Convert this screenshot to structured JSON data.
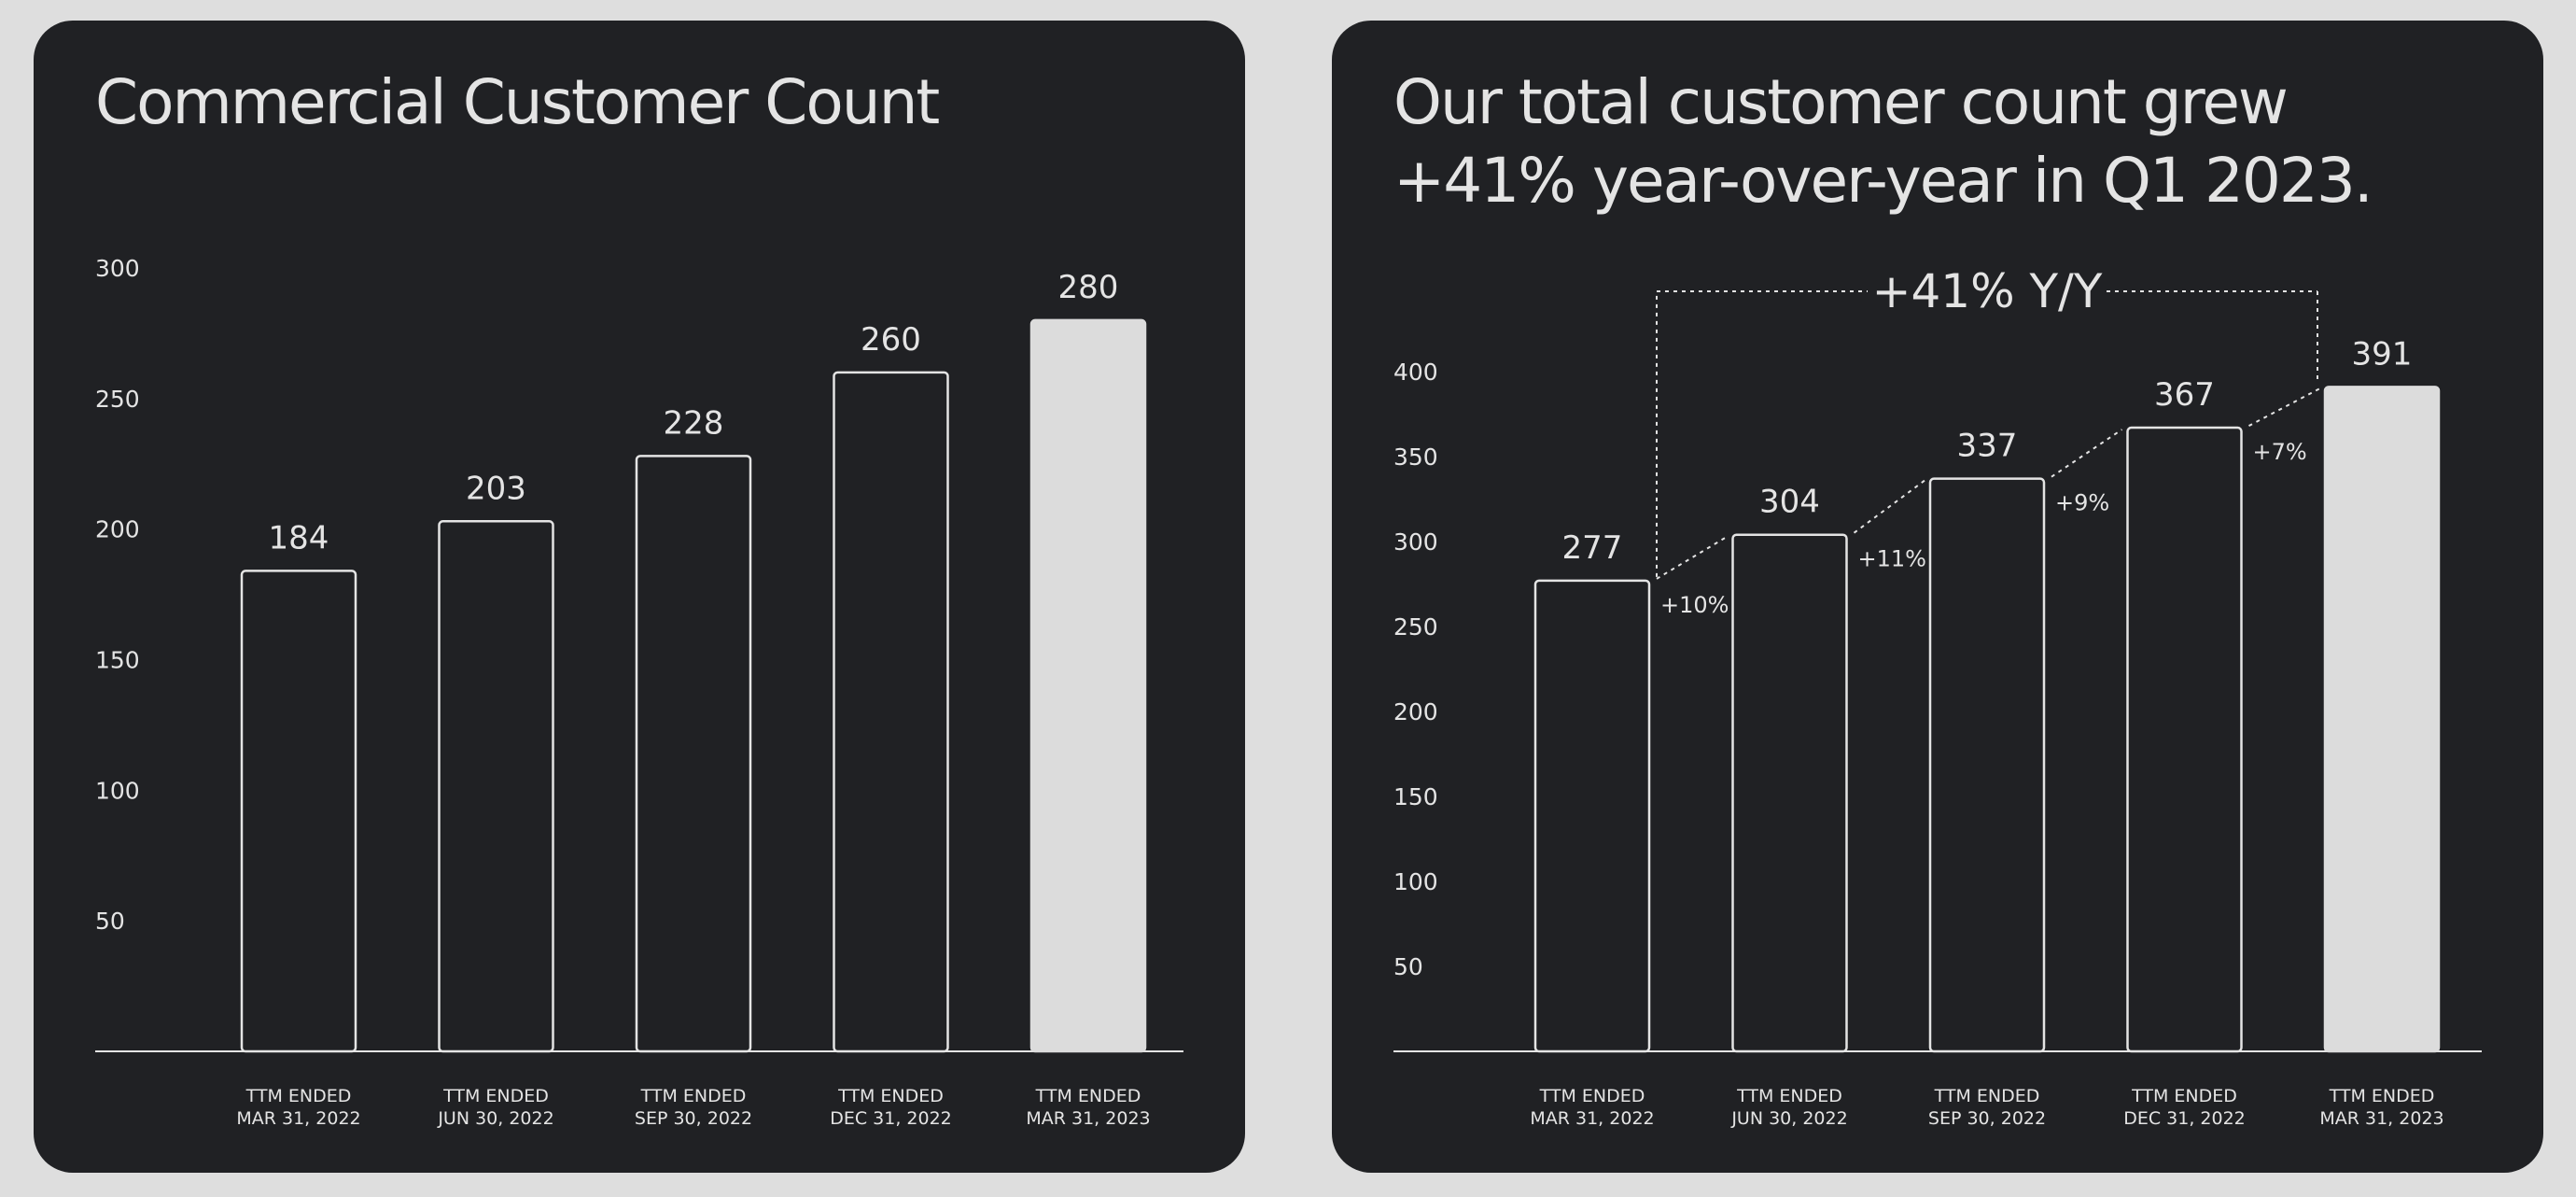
{
  "colors": {
    "page_bg": "#dedede",
    "panel_bg": "#202124",
    "text": "#e4e4e4",
    "highlight": "#dcdcdc"
  },
  "chart_data": [
    {
      "type": "bar",
      "title": "Commercial Customer Count",
      "categories": [
        [
          "TTM ENDED",
          "MAR 31, 2022"
        ],
        [
          "TTM ENDED",
          "JUN 30, 2022"
        ],
        [
          "TTM ENDED",
          "SEP 30, 2022"
        ],
        [
          "TTM ENDED",
          "DEC 31, 2022"
        ],
        [
          "TTM ENDED",
          "MAR 31, 2023"
        ]
      ],
      "values": [
        184,
        203,
        228,
        260,
        280
      ],
      "highlight_index": 4,
      "yticks": [
        50,
        100,
        150,
        200,
        250,
        300
      ],
      "ylim": [
        0,
        300
      ],
      "grid": false
    },
    {
      "type": "bar",
      "title": "Our total customer count grew\n+41% year-over-year in Q1 2023.",
      "categories": [
        [
          "TTM ENDED",
          "MAR 31, 2022"
        ],
        [
          "TTM ENDED",
          "JUN 30, 2022"
        ],
        [
          "TTM ENDED",
          "SEP 30, 2022"
        ],
        [
          "TTM ENDED",
          "DEC 31, 2022"
        ],
        [
          "TTM ENDED",
          "MAR 31, 2023"
        ]
      ],
      "values": [
        277,
        304,
        337,
        367,
        391
      ],
      "highlight_index": 4,
      "yticks": [
        50,
        100,
        150,
        200,
        250,
        300,
        350,
        400
      ],
      "ylim": [
        0,
        400
      ],
      "grid": false,
      "growth_labels": [
        "+10%",
        "+11%",
        "+9%",
        "+7%"
      ],
      "yoy_annotation": "+41% Y/Y"
    }
  ]
}
